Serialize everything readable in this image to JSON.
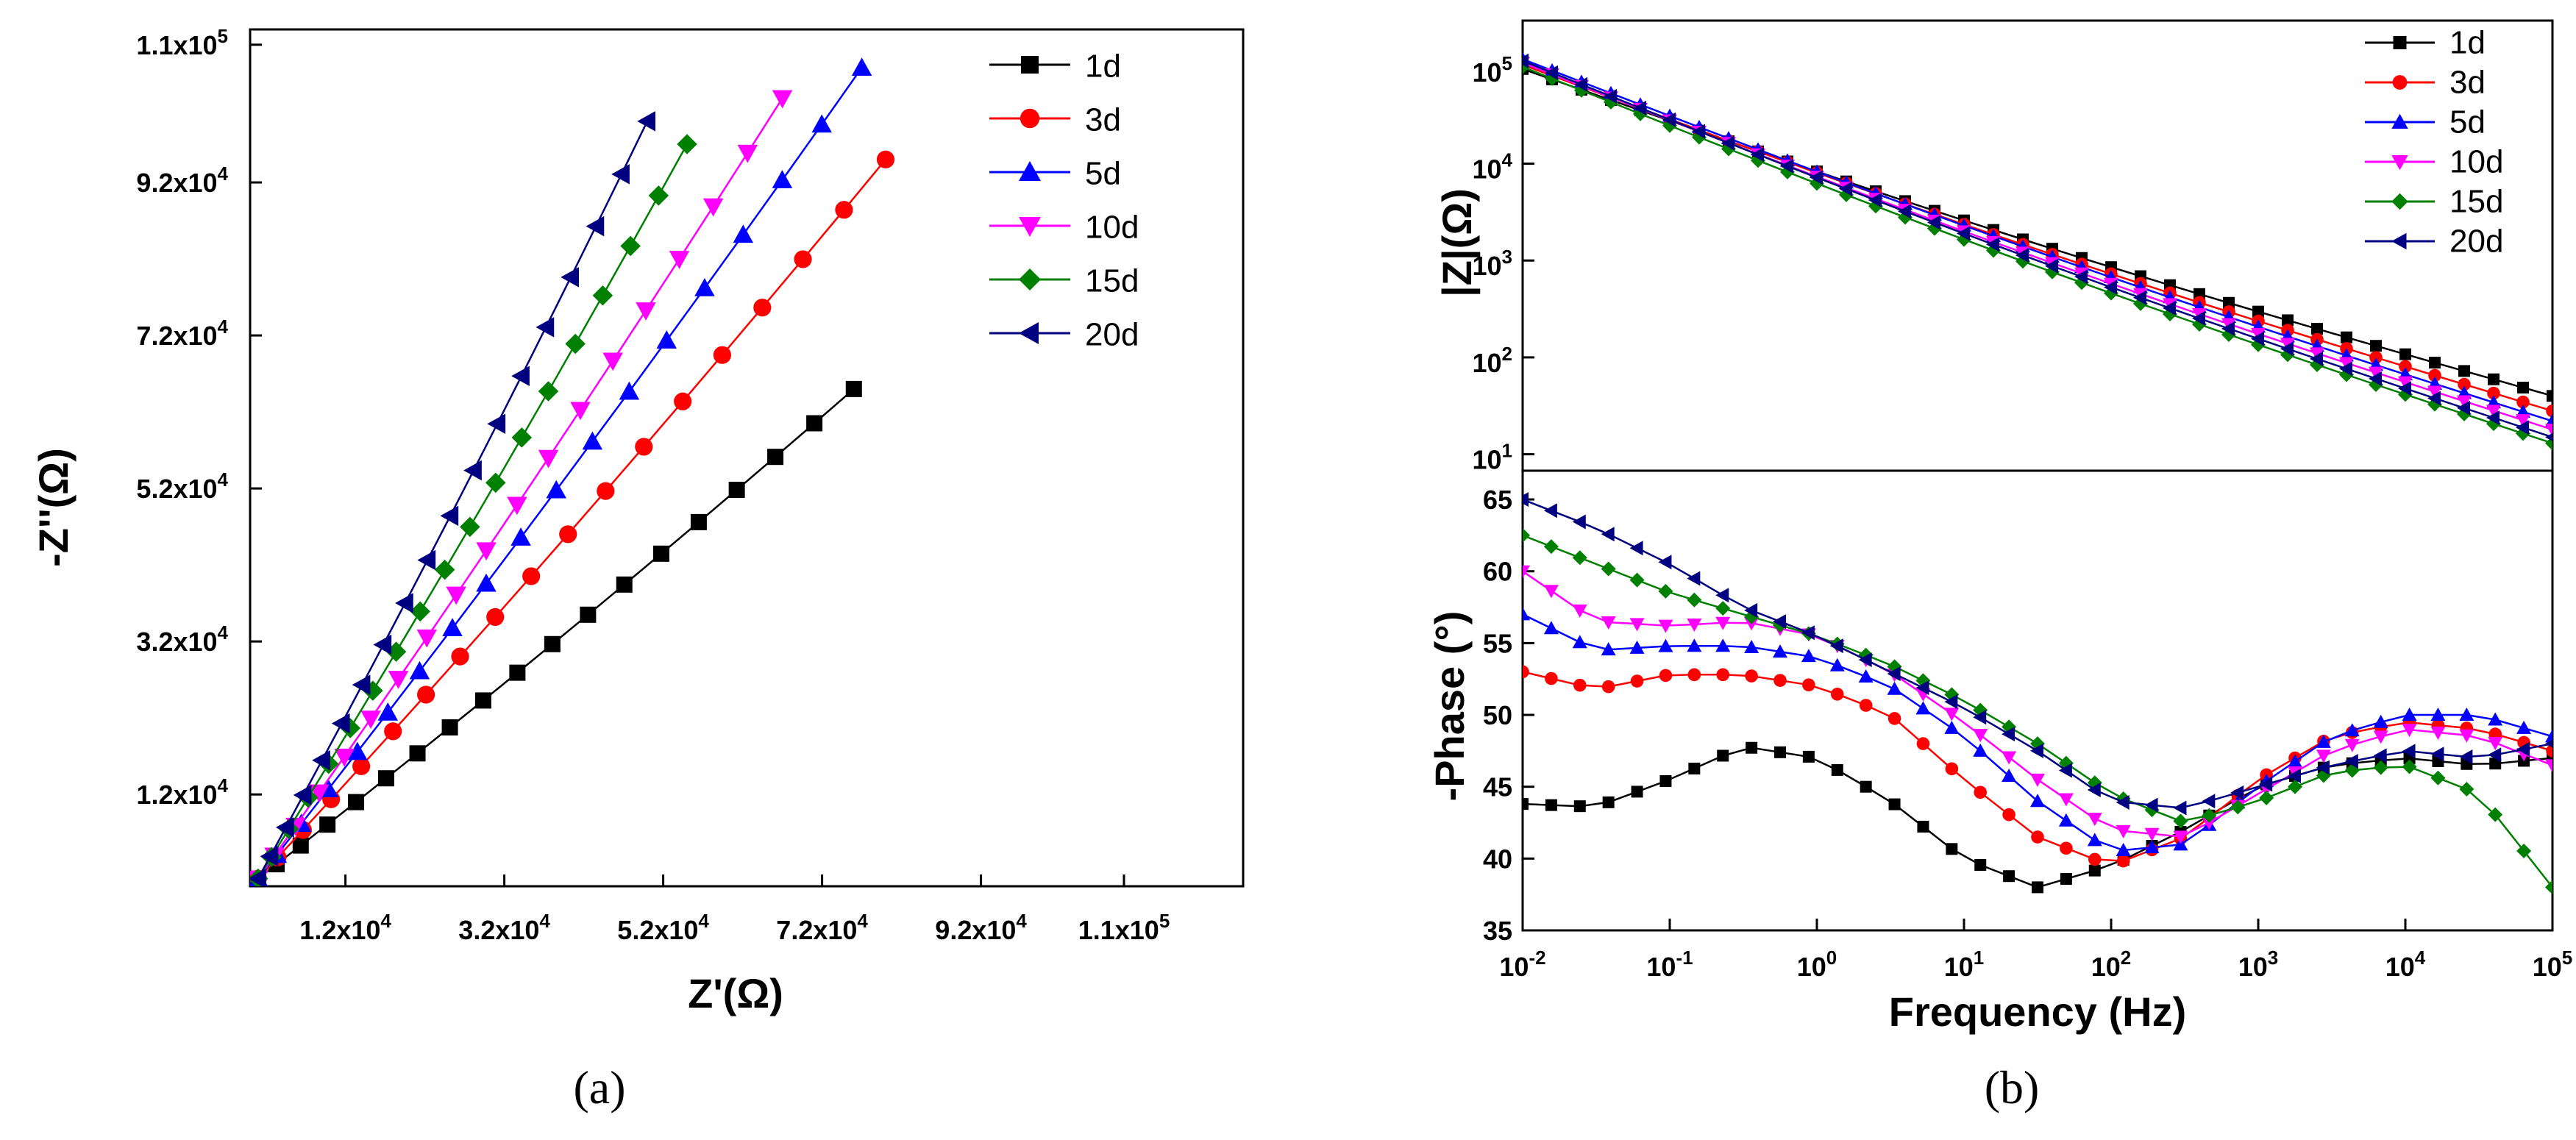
{
  "chart_data": [
    {
      "type": "scatter",
      "panel": "a",
      "caption": "(a)",
      "xlabel": "Z'(Ω)",
      "ylabel": "-Z''(Ω)",
      "xlim": [
        0,
        125000
      ],
      "ylim": [
        0,
        112000
      ],
      "xtick_values": [
        12000,
        32000,
        52000,
        72000,
        92000,
        110000
      ],
      "xtick_labels": [
        {
          "mant": "1.2x10",
          "exp": "4"
        },
        {
          "mant": "3.2x10",
          "exp": "4"
        },
        {
          "mant": "5.2x10",
          "exp": "4"
        },
        {
          "mant": "7.2x10",
          "exp": "4"
        },
        {
          "mant": "9.2x10",
          "exp": "4"
        },
        {
          "mant": "1.1x10",
          "exp": "5"
        }
      ],
      "ytick_values": [
        12000,
        32000,
        52000,
        72000,
        92000,
        110000
      ],
      "ytick_labels": [
        {
          "mant": "1.2x10",
          "exp": "4"
        },
        {
          "mant": "3.2x10",
          "exp": "4"
        },
        {
          "mant": "5.2x10",
          "exp": "4"
        },
        {
          "mant": "7.2x10",
          "exp": "4"
        },
        {
          "mant": "9.2x10",
          "exp": "4"
        },
        {
          "mant": "1.1x10",
          "exp": "5"
        }
      ],
      "legend_position": "top-right",
      "series": [
        {
          "name": "1d",
          "color": "#000000",
          "marker": "square",
          "x_end": 76000,
          "y_end": 65000
        },
        {
          "name": "3d",
          "color": "#ff0000",
          "marker": "circle",
          "x_end": 80000,
          "y_end": 95000
        },
        {
          "name": "5d",
          "color": "#0000ff",
          "marker": "triangle-up",
          "x_end": 77000,
          "y_end": 107000
        },
        {
          "name": "10d",
          "color": "#ff00ff",
          "marker": "triangle-down",
          "x_end": 67000,
          "y_end": 103000
        },
        {
          "name": "15d",
          "color": "#008000",
          "marker": "diamond",
          "x_end": 55000,
          "y_end": 97000
        },
        {
          "name": "20d",
          "color": "#000080",
          "marker": "triangle-left",
          "x_end": 50000,
          "y_end": 100000
        }
      ]
    },
    {
      "type": "line",
      "panel": "b-top",
      "ylabel": "|Z|(Ω)",
      "xscale": "log",
      "yscale": "log",
      "xlim": [
        0.01,
        100000
      ],
      "ylim": [
        7,
        300000
      ],
      "ytick_labels": [
        {
          "mant": "10",
          "exp": "1"
        },
        {
          "mant": "10",
          "exp": "2"
        },
        {
          "mant": "10",
          "exp": "3"
        },
        {
          "mant": "10",
          "exp": "4"
        },
        {
          "mant": "10",
          "exp": "5"
        }
      ],
      "legend_position": "top-right",
      "series": [
        {
          "name": "1d",
          "color": "#000000",
          "marker": "square",
          "z_start": 95000,
          "z_end": 40
        },
        {
          "name": "3d",
          "color": "#ff0000",
          "marker": "circle",
          "z_start": 105000,
          "z_end": 28
        },
        {
          "name": "5d",
          "color": "#0000ff",
          "marker": "triangle-up",
          "z_start": 120000,
          "z_end": 22
        },
        {
          "name": "10d",
          "color": "#ff00ff",
          "marker": "triangle-down",
          "z_start": 110000,
          "z_end": 18
        },
        {
          "name": "15d",
          "color": "#008000",
          "marker": "diamond",
          "z_start": 100000,
          "z_end": 13
        },
        {
          "name": "20d",
          "color": "#000080",
          "marker": "triangle-left",
          "z_start": 115000,
          "z_end": 15
        }
      ]
    },
    {
      "type": "line",
      "panel": "b-bottom",
      "caption": "(b)",
      "xlabel": "Frequency (Hz)",
      "ylabel": "-Phase (°)",
      "xscale": "log",
      "xlim": [
        0.01,
        100000
      ],
      "ylim": [
        35,
        67
      ],
      "xtick_labels": [
        {
          "mant": "10",
          "exp": "-2"
        },
        {
          "mant": "10",
          "exp": "-1"
        },
        {
          "mant": "10",
          "exp": "0"
        },
        {
          "mant": "10",
          "exp": "1"
        },
        {
          "mant": "10",
          "exp": "2"
        },
        {
          "mant": "10",
          "exp": "3"
        },
        {
          "mant": "10",
          "exp": "4"
        },
        {
          "mant": "10",
          "exp": "5"
        }
      ],
      "ytick_values": [
        35,
        40,
        45,
        50,
        55,
        60,
        65
      ],
      "ytick_labels": [
        "35",
        "40",
        "45",
        "50",
        "55",
        "60",
        "65"
      ],
      "series": [
        {
          "name": "1d",
          "color": "#000000",
          "marker": "square",
          "log_f": [
            -2,
            -1.5,
            -1,
            -0.5,
            0,
            0.5,
            1,
            1.5,
            2,
            2.5,
            3,
            3.5,
            4,
            4.5,
            5
          ],
          "phase": [
            43.8,
            43.6,
            45.5,
            47.8,
            47,
            44,
            40,
            38,
            39.5,
            42,
            45,
            46.5,
            47,
            46.5,
            47
          ]
        },
        {
          "name": "3d",
          "color": "#ff0000",
          "marker": "circle",
          "log_f": [
            -2,
            -1.5,
            -1,
            -0.5,
            0,
            0.5,
            1,
            1.5,
            2,
            2.5,
            3,
            3.5,
            4,
            4.5,
            5
          ],
          "phase": [
            53,
            51.8,
            52.8,
            52.8,
            52,
            50,
            45.5,
            41.5,
            39.5,
            41.5,
            45.5,
            48.5,
            49.5,
            49,
            47.5
          ]
        },
        {
          "name": "5d",
          "color": "#0000ff",
          "marker": "triangle-up",
          "log_f": [
            -2,
            -1.5,
            -1,
            -0.5,
            0,
            0.5,
            1,
            1.5,
            2,
            2.5,
            3,
            3.5,
            4,
            4.5,
            5
          ],
          "phase": [
            57,
            54.5,
            54.8,
            54.8,
            54,
            52,
            48.5,
            44,
            40.5,
            41,
            45,
            48.5,
            50,
            50,
            48.5
          ]
        },
        {
          "name": "10d",
          "color": "#ff00ff",
          "marker": "triangle-down",
          "log_f": [
            -2,
            -1.5,
            -1,
            -0.5,
            0,
            0.5,
            1,
            1.5,
            2,
            2.5,
            3,
            3.5,
            4,
            4.5,
            5
          ],
          "phase": [
            60,
            56.5,
            56.2,
            56.5,
            55.5,
            53,
            49.5,
            45.5,
            42,
            41.5,
            44.5,
            47.5,
            49,
            48.5,
            46.5
          ]
        },
        {
          "name": "15d",
          "color": "#008000",
          "marker": "diamond",
          "log_f": [
            -2,
            -1.5,
            -1,
            -0.5,
            0,
            0.5,
            1,
            1.5,
            2,
            2.5,
            3,
            3.5,
            4,
            4.5,
            5
          ],
          "phase": [
            62.5,
            60.5,
            58.5,
            57,
            55.5,
            53.5,
            51,
            48,
            44.5,
            42.5,
            44,
            46,
            46.5,
            44.5,
            38
          ]
        },
        {
          "name": "20d",
          "color": "#000080",
          "marker": "triangle-left",
          "log_f": [
            -2,
            -1.5,
            -1,
            -0.5,
            0,
            0.5,
            1,
            1.5,
            2,
            2.5,
            3,
            3.5,
            4,
            4.5,
            5
          ],
          "phase": [
            65,
            63,
            60.5,
            57.5,
            55.5,
            53,
            50.5,
            47.5,
            44,
            43.5,
            45,
            46.5,
            47.5,
            47,
            48
          ]
        }
      ]
    }
  ]
}
